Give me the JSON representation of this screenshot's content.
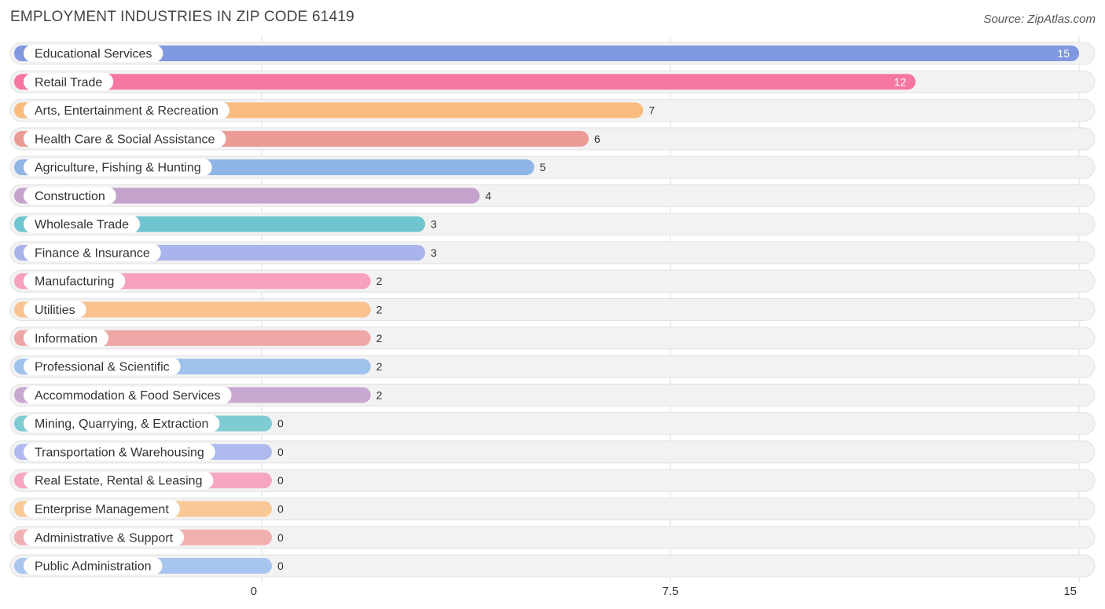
{
  "header": {
    "title": "EMPLOYMENT INDUSTRIES IN ZIP CODE 61419",
    "source": "Source: ZipAtlas.com"
  },
  "chart_data": {
    "type": "bar",
    "orientation": "horizontal",
    "title": "EMPLOYMENT INDUSTRIES IN ZIP CODE 61419",
    "xlim": [
      0,
      15
    ],
    "xticks": [
      {
        "value": 0,
        "label": "0"
      },
      {
        "value": 7.5,
        "label": "7.5"
      },
      {
        "value": 15,
        "label": "15"
      }
    ],
    "grid": true,
    "categories": [
      "Educational Services",
      "Retail Trade",
      "Arts, Entertainment & Recreation",
      "Health Care & Social Assistance",
      "Agriculture, Fishing & Hunting",
      "Construction",
      "Wholesale Trade",
      "Finance & Insurance",
      "Manufacturing",
      "Utilities",
      "Information",
      "Professional & Scientific",
      "Accommodation & Food Services",
      "Mining, Quarrying, & Extraction",
      "Transportation & Warehousing",
      "Real Estate, Rental & Leasing",
      "Enterprise Management",
      "Administrative & Support",
      "Public Administration"
    ],
    "values": [
      15,
      12,
      7,
      6,
      5,
      4,
      3,
      3,
      2,
      2,
      2,
      2,
      2,
      0,
      0,
      0,
      0,
      0,
      0
    ],
    "colors": [
      "#8098e0",
      "#f5779f",
      "#f9bb7e",
      "#ec9a95",
      "#8fb5e6",
      "#c4a2cc",
      "#6ec5cf",
      "#a9b4ec",
      "#f7a0bf",
      "#f9c28f",
      "#eea7a6",
      "#9fc2ec",
      "#c8a7d1",
      "#7fcbd2",
      "#b0baef",
      "#f6a6c2",
      "#f9c895",
      "#f1b0b0",
      "#a8c5ee"
    ]
  }
}
